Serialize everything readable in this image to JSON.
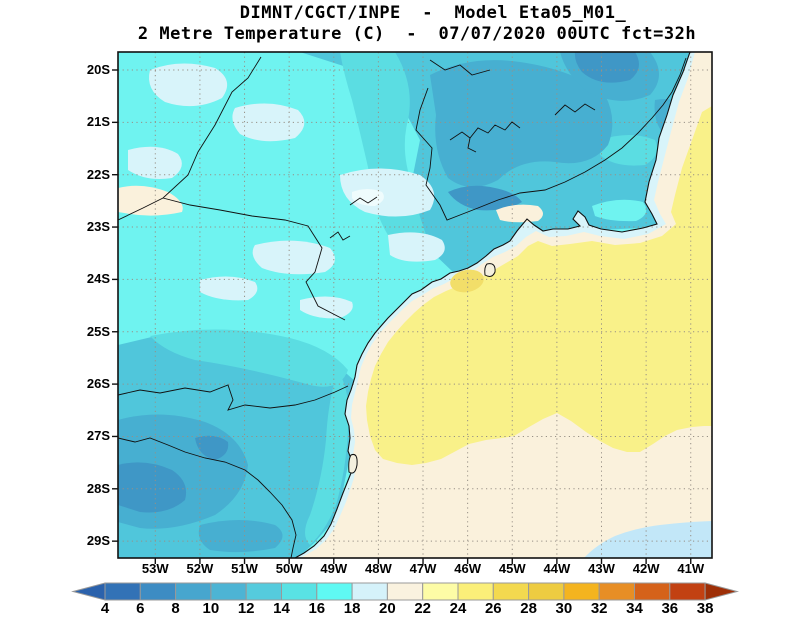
{
  "header": {
    "line1": "DIMNT/CGCT/INPE  -  Model Eta05_M01_",
    "line2": "2 Metre Temperature (C)  -  07/07/2020 00UTC fct=32h"
  },
  "map": {
    "lat_ticks": [
      "20S",
      "21S",
      "22S",
      "23S",
      "24S",
      "25S",
      "26S",
      "27S",
      "28S",
      "29S"
    ],
    "lon_ticks": [
      "53W",
      "52W",
      "51W",
      "50W",
      "49W",
      "48W",
      "47W",
      "46W",
      "45W",
      "44W",
      "43W",
      "42W",
      "41W"
    ]
  },
  "colorbar": {
    "labels": [
      "4",
      "6",
      "8",
      "10",
      "12",
      "14",
      "16",
      "18",
      "20",
      "22",
      "24",
      "26",
      "28",
      "30",
      "32",
      "34",
      "36",
      "38"
    ],
    "segment_colors": [
      "#3272B6",
      "#3D8CC3",
      "#47A6CE",
      "#4DB4D4",
      "#55CBDD",
      "#59E2E4",
      "#5FF9F3",
      "#D5F2FA",
      "#FAF2DF",
      "#FDFCA6",
      "#FBEF79",
      "#F3D94F",
      "#EECC41",
      "#F4B41F",
      "#E78E25",
      "#D5621A",
      "#C24112"
    ],
    "arrow_left_color": "#2B62AC",
    "arrow_right_color": "#9E2F07",
    "outline_color": "#999999"
  },
  "palette": {
    "t6_8": "#3A85BC",
    "t8_10": "#3F97C6",
    "t10_12": "#47AFD1",
    "t12_14": "#50C6DB",
    "t14_16": "#5BDDE2",
    "t16_18": "#6FF3F0",
    "t18_20": "#D8F4FA",
    "t20_22": "#FAF1DC",
    "t22_24": "#F9F189",
    "t24_26": "#F2DE69",
    "ocean_cool_corner": "#C2E7F8",
    "white_patch": "#EFFCFD",
    "island_fill": "#F4F0DE",
    "line_color": "#111111",
    "grid_color": "#979086"
  }
}
